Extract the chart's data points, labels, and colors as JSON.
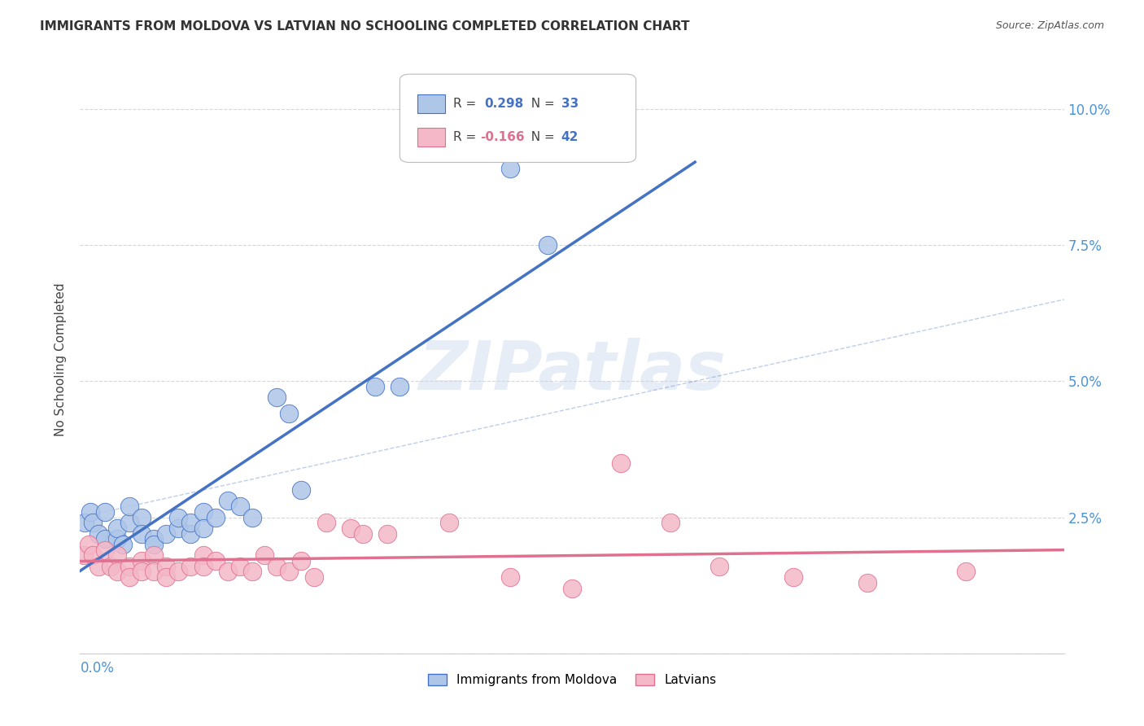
{
  "title": "IMMIGRANTS FROM MOLDOVA VS LATVIAN NO SCHOOLING COMPLETED CORRELATION CHART",
  "source": "Source: ZipAtlas.com",
  "ylabel": "No Schooling Completed",
  "ytick_vals": [
    0.0,
    0.025,
    0.05,
    0.075,
    0.1
  ],
  "ytick_labels": [
    "",
    "2.5%",
    "5.0%",
    "7.5%",
    "10.0%"
  ],
  "xlim": [
    0.0,
    0.08
  ],
  "ylim": [
    0.0,
    0.108
  ],
  "moldova_color": "#aec6e8",
  "latvian_color": "#f4b8c8",
  "moldova_line_color": "#4472c4",
  "latvian_line_color": "#e07090",
  "watermark_text": "ZIPatlas",
  "background_color": "#ffffff",
  "grid_color": "#cccccc",
  "moldova_x": [
    0.0004,
    0.0008,
    0.001,
    0.0015,
    0.002,
    0.002,
    0.003,
    0.003,
    0.0035,
    0.004,
    0.004,
    0.005,
    0.005,
    0.006,
    0.006,
    0.007,
    0.008,
    0.008,
    0.009,
    0.009,
    0.01,
    0.01,
    0.011,
    0.012,
    0.013,
    0.014,
    0.016,
    0.017,
    0.018,
    0.024,
    0.026,
    0.038,
    0.035
  ],
  "moldova_y": [
    0.024,
    0.026,
    0.024,
    0.022,
    0.021,
    0.026,
    0.021,
    0.023,
    0.02,
    0.024,
    0.027,
    0.025,
    0.022,
    0.021,
    0.02,
    0.022,
    0.023,
    0.025,
    0.022,
    0.024,
    0.026,
    0.023,
    0.025,
    0.028,
    0.027,
    0.025,
    0.047,
    0.044,
    0.03,
    0.049,
    0.049,
    0.075,
    0.089
  ],
  "latvian_x": [
    0.0003,
    0.0007,
    0.001,
    0.0015,
    0.002,
    0.0025,
    0.003,
    0.003,
    0.004,
    0.004,
    0.005,
    0.005,
    0.006,
    0.006,
    0.007,
    0.007,
    0.008,
    0.009,
    0.01,
    0.01,
    0.011,
    0.012,
    0.013,
    0.014,
    0.015,
    0.016,
    0.017,
    0.018,
    0.019,
    0.02,
    0.022,
    0.023,
    0.025,
    0.03,
    0.035,
    0.04,
    0.044,
    0.048,
    0.052,
    0.058,
    0.064,
    0.072
  ],
  "latvian_y": [
    0.018,
    0.02,
    0.018,
    0.016,
    0.019,
    0.016,
    0.018,
    0.015,
    0.016,
    0.014,
    0.017,
    0.015,
    0.018,
    0.015,
    0.016,
    0.014,
    0.015,
    0.016,
    0.018,
    0.016,
    0.017,
    0.015,
    0.016,
    0.015,
    0.018,
    0.016,
    0.015,
    0.017,
    0.014,
    0.024,
    0.023,
    0.022,
    0.022,
    0.024,
    0.014,
    0.012,
    0.035,
    0.024,
    0.016,
    0.014,
    0.013,
    0.015
  ]
}
